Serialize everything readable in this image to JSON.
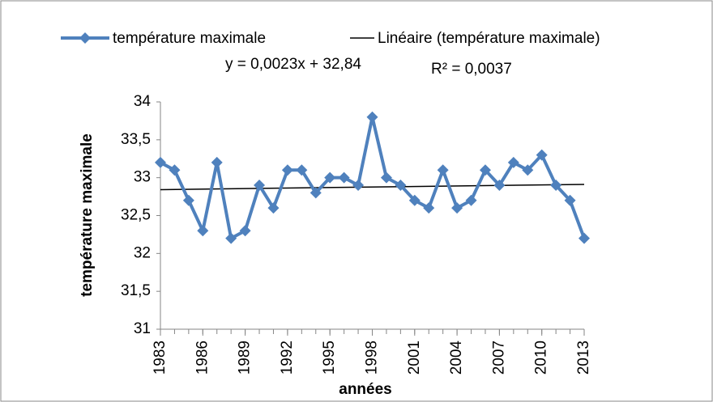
{
  "chart_data": {
    "type": "line",
    "x_label": "années",
    "y_label": "température maximale",
    "x": [
      1983,
      1984,
      1985,
      1986,
      1987,
      1988,
      1989,
      1990,
      1991,
      1992,
      1993,
      1994,
      1995,
      1996,
      1997,
      1998,
      1999,
      2000,
      2001,
      2002,
      2003,
      2004,
      2005,
      2006,
      2007,
      2008,
      2009,
      2010,
      2011,
      2012,
      2013
    ],
    "series": [
      {
        "name": "température maximale",
        "color": "#4f81bd",
        "values": [
          33.2,
          33.1,
          32.7,
          32.3,
          33.2,
          32.2,
          32.3,
          32.9,
          32.6,
          33.1,
          33.1,
          32.8,
          33.0,
          33.0,
          32.9,
          33.8,
          33.0,
          32.9,
          32.7,
          32.6,
          33.1,
          32.6,
          32.7,
          33.1,
          32.9,
          33.2,
          33.1,
          33.3,
          32.9,
          32.7,
          32.2
        ]
      }
    ],
    "trendline": {
      "name": "Linéaire (température maximale)",
      "color": "#000000",
      "slope": 0.0023,
      "intercept": 32.84,
      "equation": "y = 0,0023x + 32,84",
      "r_squared": "R² = 0,0037"
    },
    "xlim": [
      1983,
      2013
    ],
    "xticks": [
      1983,
      1986,
      1989,
      1992,
      1995,
      1998,
      2001,
      2004,
      2007,
      2010,
      2013
    ],
    "ylim": [
      31,
      34
    ],
    "yticks": [
      31,
      {
        "value": 31.5,
        "label": "31,5"
      },
      32,
      {
        "value": 32.5,
        "label": "32,5"
      },
      33,
      {
        "value": 33.5,
        "label": "33,5"
      },
      34
    ],
    "legend": "top"
  }
}
